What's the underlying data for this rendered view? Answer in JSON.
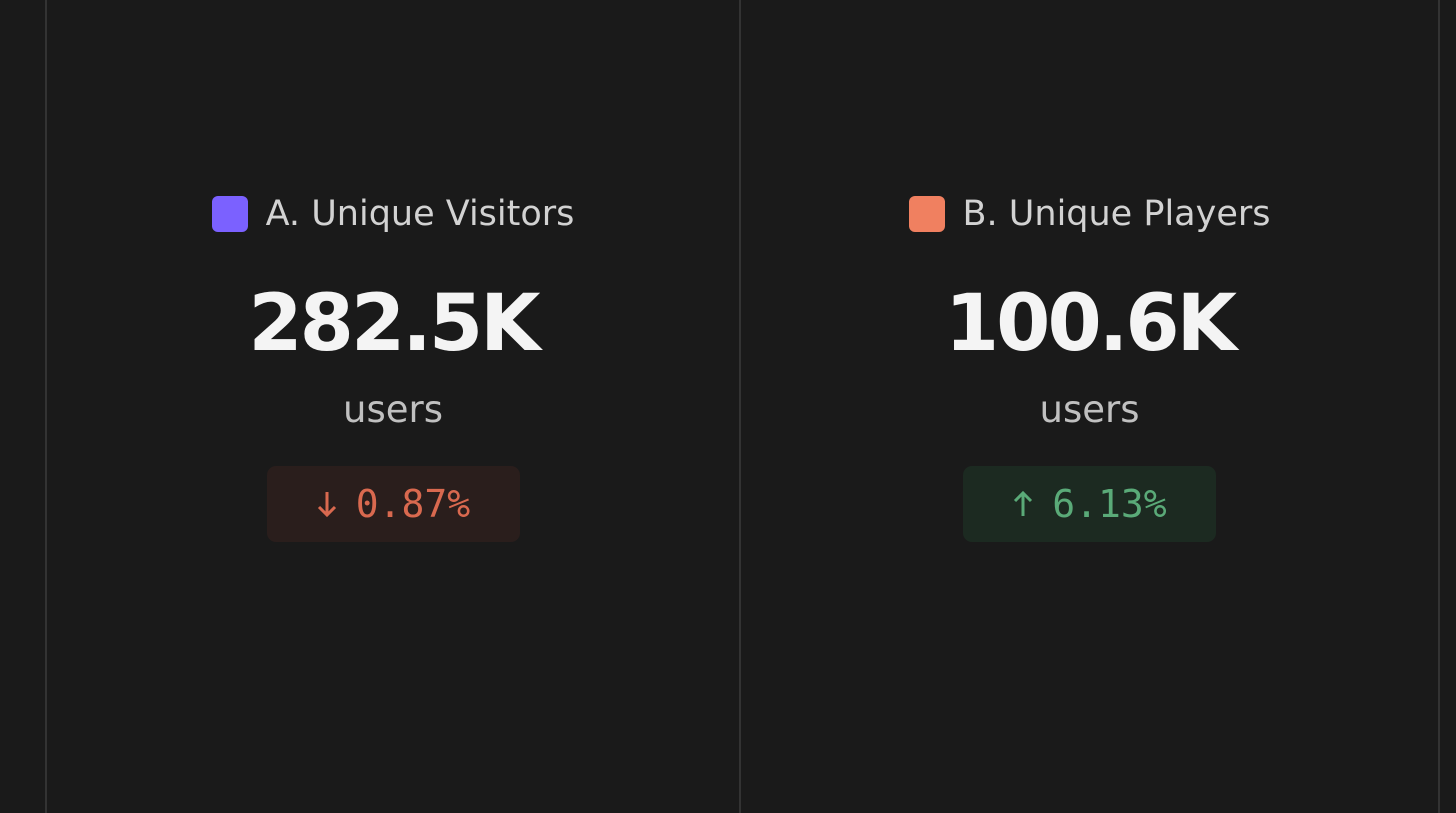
{
  "metrics": [
    {
      "label": "A. Unique Visitors",
      "color": "#7b61ff",
      "value": "282.5K",
      "unit": "users",
      "change": "0.87%",
      "direction": "down"
    },
    {
      "label": "B. Unique Players",
      "color": "#f08060",
      "value": "100.6K",
      "unit": "users",
      "change": "6.13%",
      "direction": "up"
    }
  ]
}
